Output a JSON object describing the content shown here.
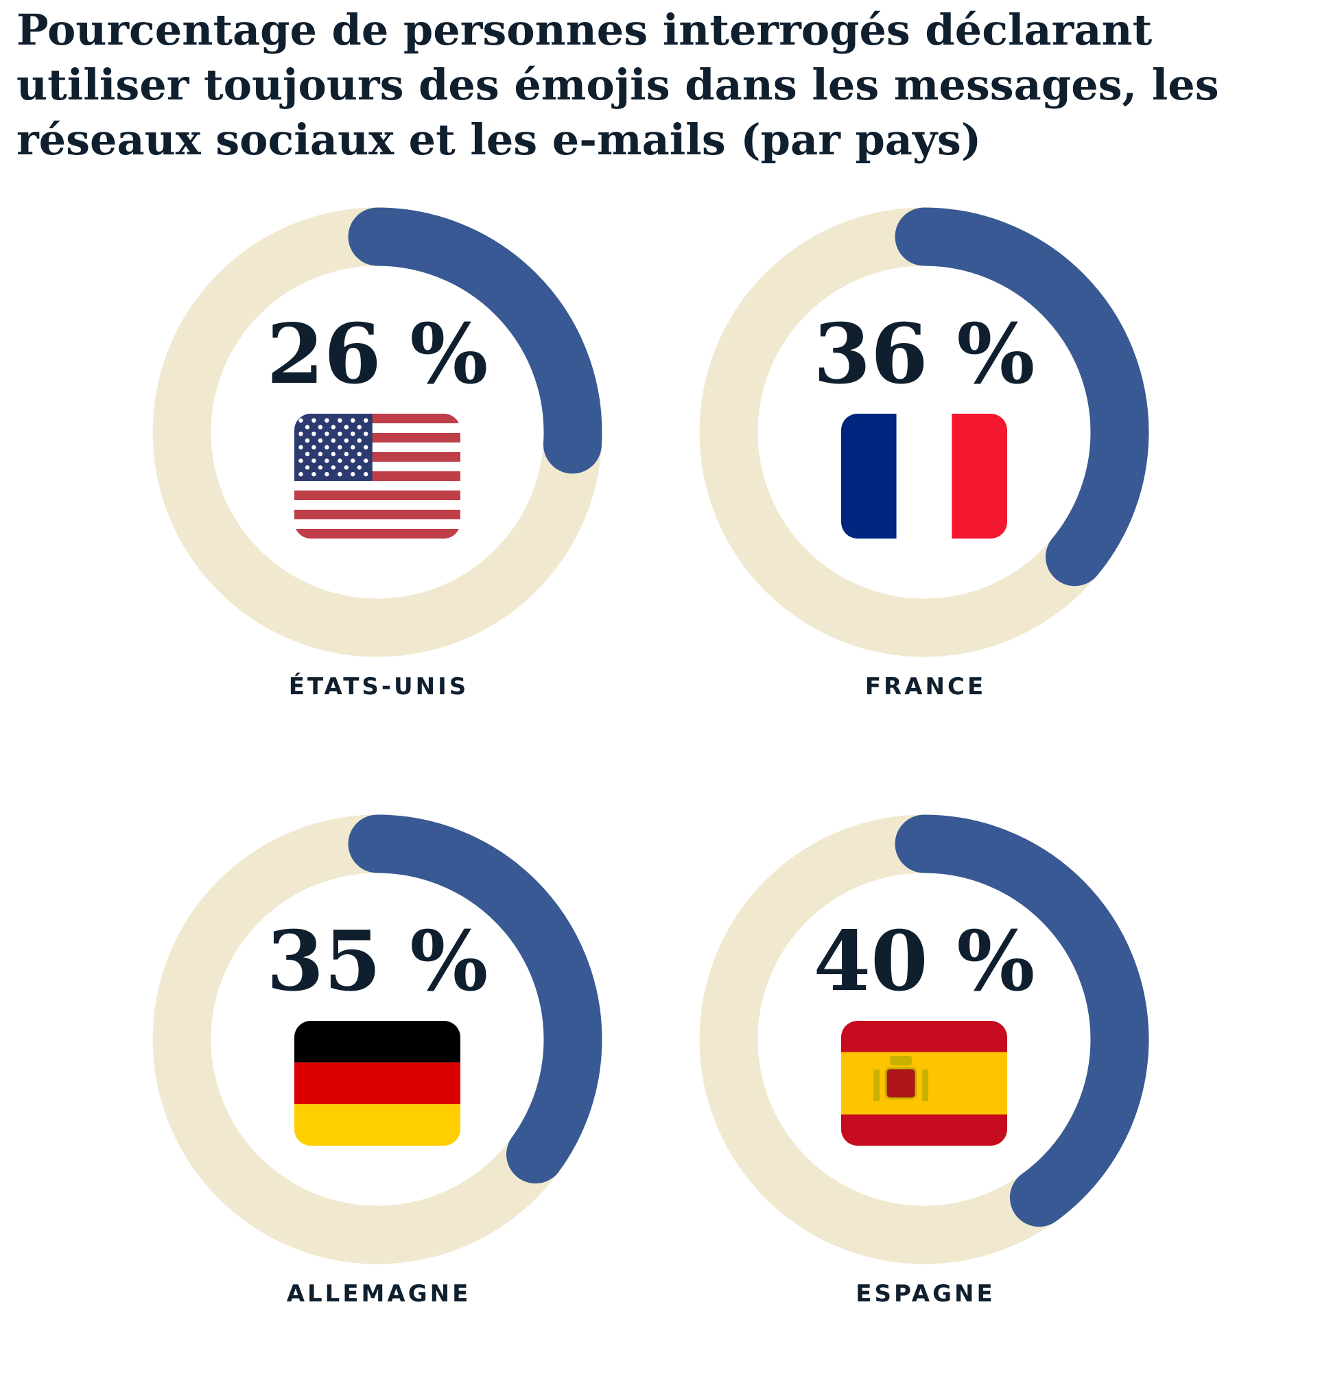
{
  "chart_data": {
    "type": "donut",
    "title": "Pourcentage de personnes interrogés déclarant utiliser toujours des émojis dans les messages, les réseaux sociaux et les e-mails (par pays)",
    "categories": [
      "ÉTATS-UNIS",
      "FRANCE",
      "ALLEMAGNE",
      "ESPAGNE"
    ],
    "values": [
      26,
      36,
      35,
      40
    ],
    "value_labels": [
      "26 %",
      "36 %",
      "35 %",
      "40 %"
    ],
    "flag_icons": [
      "flag-us-icon",
      "flag-france-icon",
      "flag-germany-icon",
      "flag-spain-icon"
    ],
    "unit": "%",
    "range": [
      0,
      100
    ],
    "colors": {
      "value": "#385994",
      "track": "#f0e9cf",
      "text": "#0f1f2e"
    }
  }
}
